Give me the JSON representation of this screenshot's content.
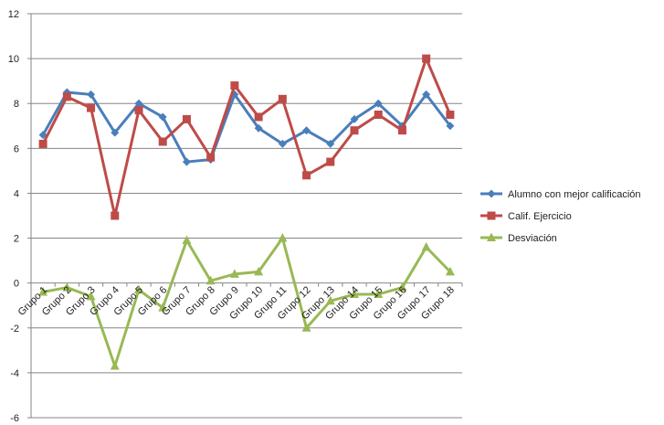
{
  "chart_data": {
    "type": "line",
    "categories": [
      "Grupo 1",
      "Grupo 2",
      "Grupo 3",
      "Grupo 4",
      "Grupo 5",
      "Grupo 6",
      "Grupo 7",
      "Grupo 8",
      "Grupo 9",
      "Grupo 10",
      "Grupo 11",
      "Grupo 12",
      "Grupo 13",
      "Grupo 14",
      "Grupo 15",
      "Grupo 16",
      "Grupo 17",
      "Grupo 18"
    ],
    "series": [
      {
        "name": "Alumno con mejor calificación",
        "color": "#4a7ebb",
        "marker": "diamond",
        "values": [
          6.6,
          8.5,
          8.4,
          6.7,
          8.0,
          7.4,
          5.4,
          5.5,
          8.4,
          6.9,
          6.2,
          6.8,
          6.2,
          7.3,
          8.0,
          7.0,
          8.4,
          7.0
        ]
      },
      {
        "name": "Calif. Ejercicio",
        "color": "#be4b48",
        "marker": "square",
        "values": [
          6.2,
          8.3,
          7.8,
          3.0,
          7.7,
          6.3,
          7.3,
          5.6,
          8.8,
          7.4,
          8.2,
          4.8,
          5.4,
          6.8,
          7.5,
          6.8,
          10.0,
          7.5
        ]
      },
      {
        "name": "Desviación",
        "color": "#98b954",
        "marker": "triangle",
        "values": [
          -0.4,
          -0.2,
          -0.6,
          -3.7,
          -0.3,
          -1.1,
          1.9,
          0.1,
          0.4,
          0.5,
          2.0,
          -2.0,
          -0.8,
          -0.5,
          -0.5,
          -0.2,
          1.6,
          0.5
        ]
      }
    ],
    "ylim": [
      -6,
      12
    ],
    "yticks": [
      -6,
      -4,
      -2,
      0,
      2,
      4,
      6,
      8,
      10,
      12
    ],
    "ytick_labels": [
      "-6",
      "-4",
      "-2",
      "0",
      "2",
      "4",
      "6",
      "8",
      "10",
      "12"
    ],
    "grid": true,
    "legend": "right",
    "xlabel": "",
    "ylabel": ""
  }
}
